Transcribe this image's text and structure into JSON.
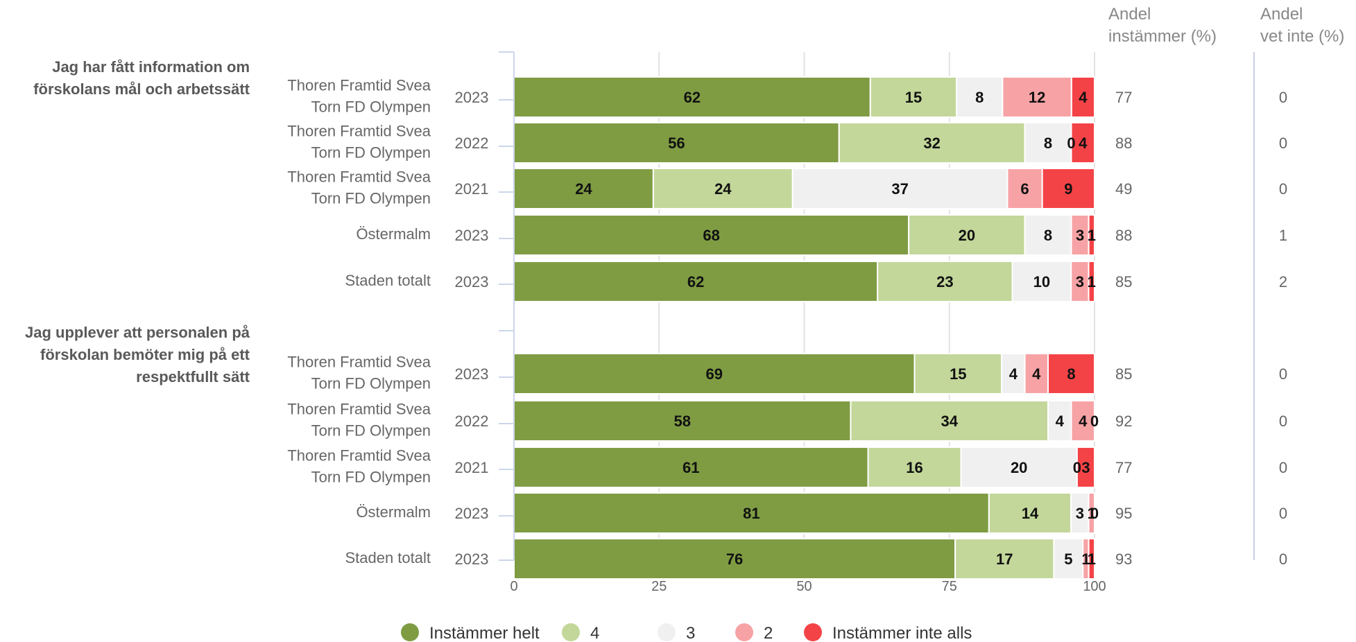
{
  "chart_data": {
    "type": "bar",
    "orientation": "horizontal",
    "stacked": true,
    "xlim": [
      0,
      100
    ],
    "xticks": [
      "0",
      "25",
      "50",
      "75",
      "100"
    ],
    "grid": true,
    "legend_position": "bottom",
    "legend": [
      {
        "name": "Instämmer helt",
        "color": "#7f9c43"
      },
      {
        "name": "4",
        "color": "#c3d79a"
      },
      {
        "name": "3",
        "color": "#f0f0f0"
      },
      {
        "name": "2",
        "color": "#f7a3a6"
      },
      {
        "name": "Instämmer inte alls",
        "color": "#f44347"
      }
    ],
    "columns": {
      "andel_instammer": "Andel\ninstämmer (%)",
      "andel_vet_inte": "Andel\nvet inte (%)"
    },
    "groups": [
      {
        "question": "Jag har fått information om\nförskolans mål och arbetssätt",
        "rows": [
          {
            "unit": "Thoren Framtid Svea\nTorn FD Olympen",
            "year": "2023",
            "values": [
              62,
              15,
              8,
              12,
              4
            ],
            "andel_instammer": "77",
            "andel_vet_inte": "0"
          },
          {
            "unit": "Thoren Framtid Svea\nTorn FD Olympen",
            "year": "2022",
            "values": [
              56,
              32,
              8,
              0,
              4
            ],
            "andel_instammer": "88",
            "andel_vet_inte": "0"
          },
          {
            "unit": "Thoren Framtid Svea\nTorn FD Olympen",
            "year": "2021",
            "values": [
              24,
              24,
              37,
              6,
              9
            ],
            "andel_instammer": "49",
            "andel_vet_inte": "0"
          },
          {
            "unit": "Östermalm",
            "year": "2023",
            "values": [
              68,
              20,
              8,
              3,
              1
            ],
            "andel_instammer": "88",
            "andel_vet_inte": "1"
          },
          {
            "unit": "Staden totalt",
            "year": "2023",
            "values": [
              62,
              23,
              10,
              3,
              1
            ],
            "andel_instammer": "85",
            "andel_vet_inte": "2"
          }
        ]
      },
      {
        "question": "Jag upplever att personalen på\nförskolan bemöter mig på ett\nrespektfullt sätt",
        "rows": [
          {
            "unit": "Thoren Framtid Svea\nTorn FD Olympen",
            "year": "2023",
            "values": [
              69,
              15,
              4,
              4,
              8
            ],
            "andel_instammer": "85",
            "andel_vet_inte": "0"
          },
          {
            "unit": "Thoren Framtid Svea\nTorn FD Olympen",
            "year": "2022",
            "values": [
              58,
              34,
              4,
              4,
              0
            ],
            "andel_instammer": "92",
            "andel_vet_inte": "0"
          },
          {
            "unit": "Thoren Framtid Svea\nTorn FD Olympen",
            "year": "2021",
            "values": [
              61,
              16,
              20,
              0,
              3
            ],
            "andel_instammer": "77",
            "andel_vet_inte": "0"
          },
          {
            "unit": "Östermalm",
            "year": "2023",
            "values": [
              81,
              14,
              3,
              1,
              0
            ],
            "andel_instammer": "95",
            "andel_vet_inte": "0"
          },
          {
            "unit": "Staden totalt",
            "year": "2023",
            "values": [
              76,
              17,
              5,
              1,
              1
            ],
            "andel_instammer": "93",
            "andel_vet_inte": "0"
          }
        ]
      }
    ]
  }
}
